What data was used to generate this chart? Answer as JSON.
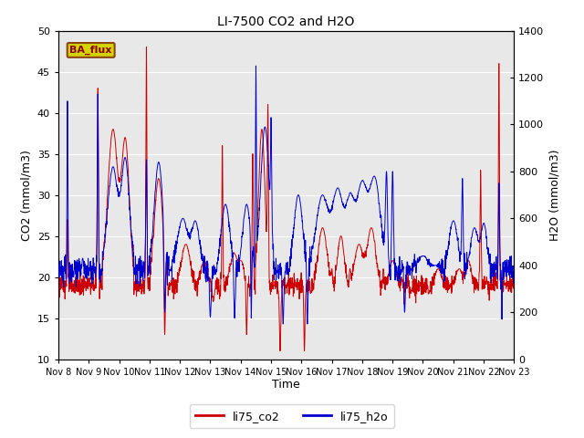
{
  "title": "LI-7500 CO2 and H2O",
  "xlabel": "Time",
  "ylabel_left": "CO2 (mmol/m3)",
  "ylabel_right": "H2O (mmol/m3)",
  "ylim_left": [
    10,
    50
  ],
  "ylim_right": [
    0,
    1400
  ],
  "xtick_labels": [
    "Nov 8",
    "Nov 9",
    "Nov 10",
    "Nov 11",
    "Nov 12",
    "Nov 13",
    "Nov 14",
    "Nov 15",
    "Nov 16",
    "Nov 17",
    "Nov 18",
    "Nov 19",
    "Nov 20",
    "Nov 21",
    "Nov 22",
    "Nov 23"
  ],
  "legend_labels": [
    "li75_co2",
    "li75_h2o"
  ],
  "co2_color": "#cc0000",
  "h2o_color": "#0000cc",
  "bg_color": "#e8e8e8",
  "text_label": "BA_flux",
  "text_label_bg": "#d4d400",
  "text_label_border": "#8B4513",
  "figsize": [
    6.4,
    4.8
  ],
  "dpi": 100
}
